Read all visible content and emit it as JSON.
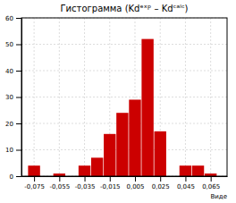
{
  "chart_data": {
    "type": "bar",
    "title": "Гистограмма (Kdᵉˣᵖ – Kdᶜᵃˡᶜ)",
    "xlabel": "Виде",
    "x": [
      -0.075,
      -0.065,
      -0.055,
      -0.045,
      -0.035,
      -0.025,
      -0.015,
      -0.005,
      0.005,
      0.015,
      0.025,
      0.035,
      0.045,
      0.055,
      0.065
    ],
    "values": [
      4,
      0,
      1,
      0,
      4,
      7,
      16,
      24,
      29,
      52,
      17,
      0,
      4,
      4,
      1
    ],
    "color": "#cc0000",
    "xlim": [
      -0.085,
      0.078
    ],
    "xticks": [
      {
        "value": -0.075,
        "label": "-0,075"
      },
      {
        "value": -0.055,
        "label": "-0,055"
      },
      {
        "value": -0.035,
        "label": "-0,035"
      },
      {
        "value": -0.015,
        "label": "-0,015"
      },
      {
        "value": 0.005,
        "label": "0,005"
      },
      {
        "value": 0.025,
        "label": "0,025"
      },
      {
        "value": 0.045,
        "label": "0,045"
      },
      {
        "value": 0.065,
        "label": "0,065"
      }
    ],
    "ylim": [
      0,
      60
    ],
    "yticks": [
      0,
      10,
      20,
      30,
      40,
      50,
      60
    ],
    "grid": true
  }
}
